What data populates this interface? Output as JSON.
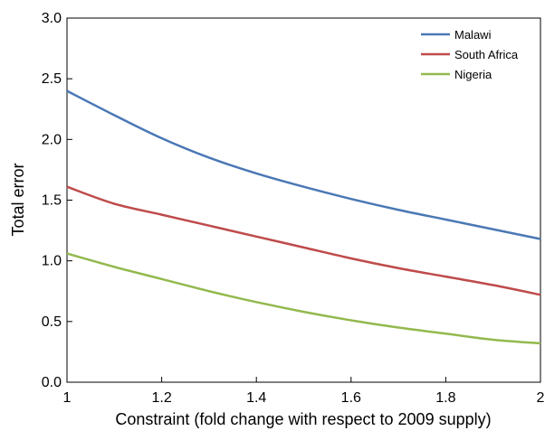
{
  "chart_data": {
    "type": "line",
    "title": "",
    "xlabel": "Constraint (fold change with respect to 2009 supply)",
    "ylabel": "Total error",
    "xlim": [
      1,
      2
    ],
    "ylim": [
      0,
      3
    ],
    "xticks": [
      "1",
      "1.2",
      "1.4",
      "1.6",
      "1.8",
      "2"
    ],
    "yticks": [
      "0.0",
      "0.5",
      "1.0",
      "1.5",
      "2.0",
      "2.5",
      "3.0"
    ],
    "grid": false,
    "legend_position": "top-right",
    "x": [
      1.0,
      1.1,
      1.2,
      1.3,
      1.4,
      1.5,
      1.6,
      1.7,
      1.8,
      1.9,
      2.0
    ],
    "series": [
      {
        "name": "Malawi",
        "color": "#4a78b5",
        "values": [
          2.4,
          2.2,
          2.01,
          1.85,
          1.72,
          1.61,
          1.51,
          1.42,
          1.34,
          1.26,
          1.18
        ]
      },
      {
        "name": "South Africa",
        "color": "#bf4a4a",
        "values": [
          1.61,
          1.47,
          1.38,
          1.29,
          1.2,
          1.11,
          1.02,
          0.94,
          0.87,
          0.8,
          0.72
        ]
      },
      {
        "name": "Nigeria",
        "color": "#93b94e",
        "values": [
          1.06,
          0.95,
          0.85,
          0.75,
          0.66,
          0.58,
          0.51,
          0.45,
          0.4,
          0.35,
          0.32
        ]
      }
    ]
  }
}
